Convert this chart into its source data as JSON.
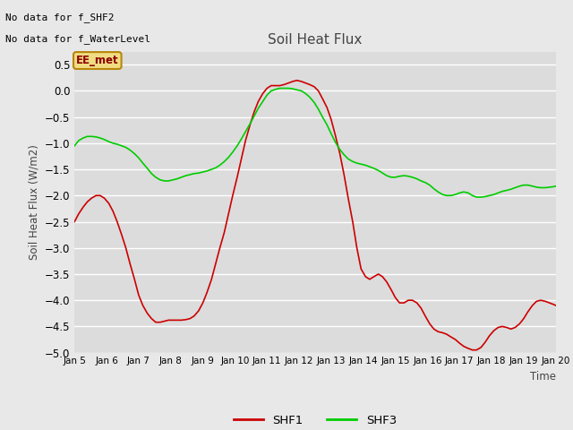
{
  "title": "Soil Heat Flux",
  "ylabel": "Soil Heat Flux (W/m2)",
  "xlabel": "Time",
  "ylim": [
    -5.0,
    0.75
  ],
  "yticks": [
    0.5,
    0.0,
    -0.5,
    -1.0,
    -1.5,
    -2.0,
    -2.5,
    -3.0,
    -3.5,
    -4.0,
    -4.5,
    -5.0
  ],
  "outer_bg_color": "#e8e8e8",
  "plot_bg_color": "#dcdcdc",
  "grid_color": "white",
  "no_data_text1": "No data for f_SHF2",
  "no_data_text2": "No data for f_WaterLevel",
  "ee_met_label": "EE_met",
  "x_tick_labels": [
    "Jan 5",
    "Jan 6",
    "Jan 7",
    "Jan 8",
    "Jan 9",
    "Jan 10",
    "Jan 11",
    "Jan 12",
    "Jan 13",
    "Jan 14",
    "Jan 15",
    "Jan 16",
    "Jan 17",
    "Jan 18",
    "Jan 19",
    "Jan 20"
  ],
  "shf1_color": "#cc0000",
  "shf3_color": "#00cc00",
  "shf1_x": [
    5.0,
    5.13,
    5.27,
    5.4,
    5.53,
    5.67,
    5.8,
    5.93,
    6.07,
    6.2,
    6.33,
    6.47,
    6.6,
    6.73,
    6.87,
    7.0,
    7.13,
    7.27,
    7.4,
    7.53,
    7.67,
    7.8,
    7.93,
    8.07,
    8.2,
    8.33,
    8.47,
    8.6,
    8.73,
    8.87,
    9.0,
    9.13,
    9.27,
    9.4,
    9.53,
    9.67,
    9.8,
    9.93,
    10.07,
    10.2,
    10.33,
    10.47,
    10.6,
    10.73,
    10.87,
    11.0,
    11.13,
    11.27,
    11.4,
    11.53,
    11.67,
    11.8,
    11.93,
    12.07,
    12.2,
    12.33,
    12.47,
    12.6,
    12.73,
    12.87,
    13.0,
    13.13,
    13.27,
    13.4,
    13.53,
    13.67,
    13.8,
    13.93,
    14.07,
    14.2,
    14.33,
    14.47,
    14.6,
    14.73,
    14.87,
    15.0,
    15.13,
    15.27,
    15.4,
    15.53,
    15.67,
    15.8,
    15.93,
    16.07,
    16.2,
    16.33,
    16.47,
    16.6,
    16.73,
    16.87,
    17.0,
    17.13,
    17.27,
    17.4,
    17.53,
    17.67,
    17.8,
    17.93,
    18.07,
    18.2,
    18.33,
    18.47,
    18.6,
    18.73,
    18.87,
    19.0,
    19.13,
    19.27,
    19.4,
    19.53,
    19.67,
    19.8,
    19.93,
    20.0
  ],
  "shf1_y": [
    -2.5,
    -2.35,
    -2.22,
    -2.12,
    -2.05,
    -2.0,
    -2.0,
    -2.05,
    -2.15,
    -2.3,
    -2.5,
    -2.75,
    -3.0,
    -3.3,
    -3.6,
    -3.9,
    -4.1,
    -4.25,
    -4.35,
    -4.42,
    -4.42,
    -4.4,
    -4.38,
    -4.38,
    -4.38,
    -4.38,
    -4.37,
    -4.35,
    -4.3,
    -4.2,
    -4.05,
    -3.85,
    -3.6,
    -3.3,
    -3.0,
    -2.7,
    -2.35,
    -2.0,
    -1.65,
    -1.3,
    -0.95,
    -0.65,
    -0.4,
    -0.2,
    -0.05,
    0.05,
    0.1,
    0.1,
    0.1,
    0.12,
    0.15,
    0.18,
    0.2,
    0.18,
    0.15,
    0.12,
    0.08,
    0.0,
    -0.15,
    -0.32,
    -0.55,
    -0.85,
    -1.2,
    -1.6,
    -2.05,
    -2.5,
    -3.0,
    -3.4,
    -3.55,
    -3.6,
    -3.55,
    -3.5,
    -3.55,
    -3.65,
    -3.8,
    -3.95,
    -4.05,
    -4.05,
    -4.0,
    -4.0,
    -4.05,
    -4.15,
    -4.3,
    -4.45,
    -4.55,
    -4.6,
    -4.62,
    -4.65,
    -4.7,
    -4.75,
    -4.82,
    -4.88,
    -4.92,
    -4.95,
    -4.95,
    -4.9,
    -4.8,
    -4.68,
    -4.58,
    -4.52,
    -4.5,
    -4.52,
    -4.55,
    -4.52,
    -4.45,
    -4.35,
    -4.22,
    -4.1,
    -4.02,
    -4.0,
    -4.02,
    -4.05,
    -4.08,
    -4.1
  ],
  "shf3_x": [
    5.0,
    5.13,
    5.27,
    5.4,
    5.53,
    5.67,
    5.8,
    5.93,
    6.07,
    6.2,
    6.33,
    6.47,
    6.6,
    6.73,
    6.87,
    7.0,
    7.13,
    7.27,
    7.4,
    7.53,
    7.67,
    7.8,
    7.93,
    8.07,
    8.2,
    8.33,
    8.47,
    8.6,
    8.73,
    8.87,
    9.0,
    9.13,
    9.27,
    9.4,
    9.53,
    9.67,
    9.8,
    9.93,
    10.07,
    10.2,
    10.33,
    10.47,
    10.6,
    10.73,
    10.87,
    11.0,
    11.13,
    11.27,
    11.4,
    11.53,
    11.67,
    11.8,
    11.93,
    12.07,
    12.2,
    12.33,
    12.47,
    12.6,
    12.73,
    12.87,
    13.0,
    13.13,
    13.27,
    13.4,
    13.53,
    13.67,
    13.8,
    13.93,
    14.07,
    14.2,
    14.33,
    14.47,
    14.6,
    14.73,
    14.87,
    15.0,
    15.13,
    15.27,
    15.4,
    15.53,
    15.67,
    15.8,
    15.93,
    16.07,
    16.2,
    16.33,
    16.47,
    16.6,
    16.73,
    16.87,
    17.0,
    17.13,
    17.27,
    17.4,
    17.53,
    17.67,
    17.8,
    17.93,
    18.07,
    18.2,
    18.33,
    18.47,
    18.6,
    18.73,
    18.87,
    19.0,
    19.13,
    19.27,
    19.4,
    19.53,
    19.67,
    19.8,
    19.93,
    20.0
  ],
  "shf3_y": [
    -1.05,
    -0.95,
    -0.9,
    -0.87,
    -0.87,
    -0.88,
    -0.9,
    -0.93,
    -0.97,
    -1.0,
    -1.02,
    -1.05,
    -1.08,
    -1.13,
    -1.2,
    -1.28,
    -1.38,
    -1.48,
    -1.58,
    -1.65,
    -1.7,
    -1.72,
    -1.72,
    -1.7,
    -1.68,
    -1.65,
    -1.62,
    -1.6,
    -1.58,
    -1.57,
    -1.55,
    -1.53,
    -1.5,
    -1.47,
    -1.42,
    -1.35,
    -1.27,
    -1.17,
    -1.05,
    -0.92,
    -0.78,
    -0.63,
    -0.48,
    -0.33,
    -0.2,
    -0.08,
    0.0,
    0.03,
    0.05,
    0.05,
    0.05,
    0.04,
    0.02,
    0.0,
    -0.05,
    -0.12,
    -0.22,
    -0.35,
    -0.5,
    -0.65,
    -0.82,
    -0.98,
    -1.12,
    -1.22,
    -1.3,
    -1.35,
    -1.38,
    -1.4,
    -1.42,
    -1.45,
    -1.48,
    -1.52,
    -1.57,
    -1.62,
    -1.65,
    -1.65,
    -1.63,
    -1.62,
    -1.63,
    -1.65,
    -1.68,
    -1.72,
    -1.75,
    -1.8,
    -1.87,
    -1.93,
    -1.98,
    -2.0,
    -2.0,
    -1.98,
    -1.95,
    -1.93,
    -1.95,
    -2.0,
    -2.03,
    -2.03,
    -2.02,
    -2.0,
    -1.98,
    -1.95,
    -1.92,
    -1.9,
    -1.88,
    -1.85,
    -1.82,
    -1.8,
    -1.8,
    -1.82,
    -1.84,
    -1.85,
    -1.85,
    -1.84,
    -1.83,
    -1.82
  ]
}
